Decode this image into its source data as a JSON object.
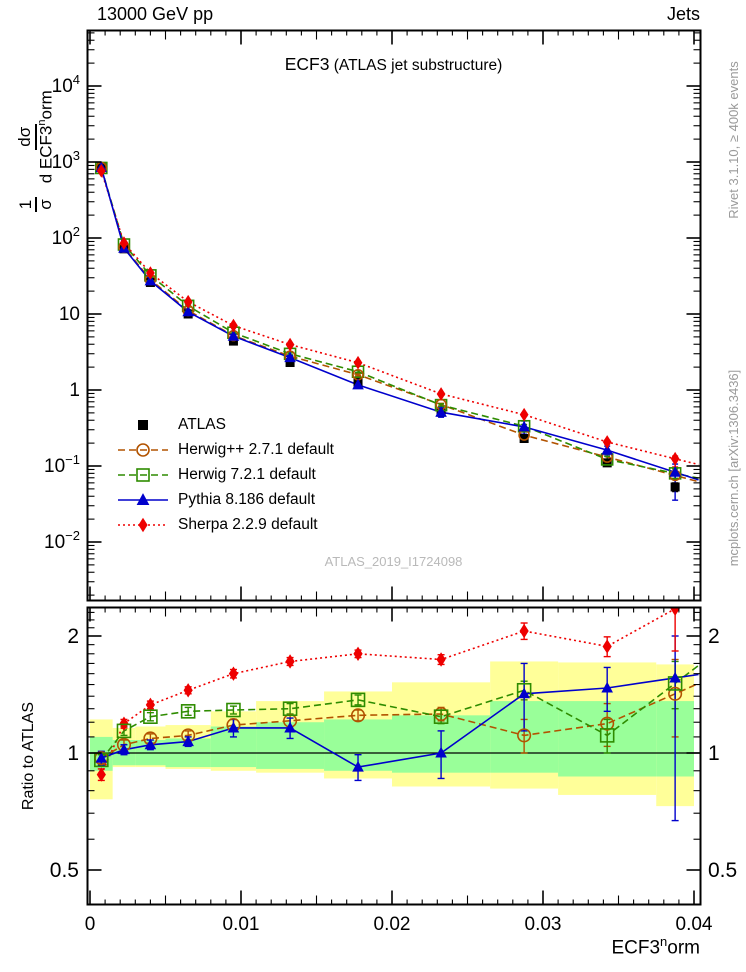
{
  "header": {
    "left": "13000 GeV pp",
    "right": "Jets"
  },
  "main": {
    "title_observable": "ECF3",
    "title_detail": " (ATLAS jet substructure)",
    "watermark": "ATLAS_2019_I1724098"
  },
  "side": {
    "rivet": "Rivet 3.1.10, ≥ 400k events",
    "mcplots": "mcplots.cern.ch [arXiv:1306.3436]"
  },
  "axis_titles": {
    "main_y": {
      "one": "1",
      "sigma": "σ",
      "dsigma": "dσ",
      "den_base": "d ECF3",
      "den_sup": "n",
      "den_rest": "orm"
    },
    "ratio_y": "Ratio to ATLAS",
    "x_base": "ECF3",
    "x_sup": "n",
    "x_rest": "orm"
  },
  "chart_data": {
    "type": "line",
    "title": "ECF3 (ATLAS jet substructure)",
    "xlabel": "ECF3^norm",
    "ylabel": "1/σ dσ/d ECF3^norm",
    "ylabel_ratio": "Ratio to ATLAS",
    "x_scale": "linear",
    "y_scale": "log",
    "ratio_scale": "log",
    "x_range": [
      0,
      0.0403
    ],
    "y_range_main": [
      0.0017,
      53000
    ],
    "y_range_ratio": [
      0.41,
      2.37
    ],
    "bin_edges": [
      0,
      0.0015,
      0.003,
      0.005,
      0.008,
      0.011,
      0.0155,
      0.02,
      0.0265,
      0.031,
      0.0375,
      0.04
    ],
    "x": [
      0.00075,
      0.00225,
      0.004,
      0.0065,
      0.0095,
      0.01325,
      0.01775,
      0.02325,
      0.02875,
      0.03425,
      0.03875
    ],
    "series": [
      {
        "id": "atlas",
        "name": "ATLAS",
        "color": "#000000",
        "marker": "square-filled",
        "line": "none",
        "values": [
          870,
          72,
          26,
          10,
          4.4,
          2.3,
          1.27,
          0.51,
          0.23,
          0.11,
          0.053
        ],
        "err_frac": [
          0.03,
          0.02,
          0.02,
          0.02,
          0.025,
          0.03,
          0.035,
          0.04,
          0.06,
          0.08,
          0.13
        ]
      },
      {
        "id": "herwigpp",
        "name": "Herwig++ 2.7.1 default",
        "color": "#b25300",
        "marker": "circle-open",
        "line": "dashed",
        "ratio": [
          0.97,
          1.05,
          1.09,
          1.11,
          1.18,
          1.21,
          1.25,
          1.26,
          1.11,
          1.19,
          1.42
        ],
        "ratio_lo": [
          0.94,
          1.02,
          1.06,
          1.08,
          1.14,
          1.17,
          1.21,
          1.21,
          1.0,
          1.04,
          1.1
        ],
        "ratio_hi": [
          1.0,
          1.08,
          1.12,
          1.14,
          1.22,
          1.25,
          1.29,
          1.31,
          1.22,
          1.34,
          1.74
        ]
      },
      {
        "id": "herwig7",
        "name": "Herwig 7.2.1 default",
        "color": "#2e8c00",
        "marker": "square-open",
        "line": "dashed",
        "ratio": [
          0.96,
          1.14,
          1.24,
          1.28,
          1.29,
          1.3,
          1.37,
          1.24,
          1.45,
          1.11,
          1.51
        ],
        "ratio_lo": [
          0.93,
          1.11,
          1.21,
          1.25,
          1.26,
          1.26,
          1.33,
          1.19,
          1.37,
          1.0,
          1.3
        ],
        "ratio_hi": [
          0.99,
          1.17,
          1.27,
          1.31,
          1.32,
          1.34,
          1.41,
          1.29,
          1.53,
          1.22,
          1.72
        ]
      },
      {
        "id": "pythia",
        "name": "Pythia 8.186 default",
        "color": "#0000cc",
        "marker": "triangle-filled",
        "line": "solid",
        "ratio": [
          0.97,
          1.02,
          1.05,
          1.07,
          1.16,
          1.16,
          0.92,
          1.0,
          1.42,
          1.47,
          1.56
        ],
        "ratio_lo": [
          0.93,
          0.99,
          1.02,
          1.04,
          1.1,
          1.09,
          0.85,
          0.86,
          1.14,
          1.28,
          0.67
        ],
        "ratio_hi": [
          1.01,
          1.05,
          1.08,
          1.1,
          1.22,
          1.23,
          0.99,
          1.14,
          1.7,
          1.66,
          2.0
        ]
      },
      {
        "id": "sherpa",
        "name": "Sherpa 2.2.9 default",
        "color": "#ee0000",
        "marker": "diamond-filled",
        "line": "dotted",
        "ratio": [
          0.88,
          1.19,
          1.33,
          1.45,
          1.6,
          1.72,
          1.8,
          1.74,
          2.06,
          1.88,
          2.35
        ],
        "ratio_lo": [
          0.85,
          1.16,
          1.3,
          1.42,
          1.56,
          1.68,
          1.76,
          1.69,
          1.96,
          1.77,
          1.83
        ],
        "ratio_hi": [
          0.91,
          1.22,
          1.36,
          1.48,
          1.64,
          1.76,
          1.84,
          1.79,
          2.16,
          1.99,
          2.55
        ]
      }
    ],
    "ratio_reference": "atlas",
    "ratio_line_value": 1,
    "bands": {
      "outer_color": "#ffff99",
      "inner_color": "#99ff99",
      "outer_lo": [
        0.76,
        0.92,
        0.92,
        0.91,
        0.9,
        0.89,
        0.86,
        0.82,
        0.81,
        0.78,
        0.73
      ],
      "outer_hi": [
        1.22,
        1.16,
        1.17,
        1.18,
        1.28,
        1.36,
        1.44,
        1.52,
        1.72,
        1.71,
        1.69
      ],
      "inner_lo": [
        0.9,
        0.93,
        0.93,
        0.92,
        0.92,
        0.91,
        0.9,
        0.89,
        0.89,
        0.87,
        0.87
      ],
      "inner_hi": [
        1.1,
        1.08,
        1.08,
        1.09,
        1.17,
        1.2,
        1.22,
        1.25,
        1.36,
        1.36,
        1.36
      ]
    },
    "x_ticks": [
      {
        "v": 0,
        "label": "0"
      },
      {
        "v": 0.01,
        "label": "0.01"
      },
      {
        "v": 0.02,
        "label": "0.02"
      },
      {
        "v": 0.03,
        "label": "0.03"
      },
      {
        "v": 0.04,
        "label": "0.04"
      }
    ],
    "y_ticks_main": [
      {
        "v": 10000,
        "base": "10",
        "sup": "4"
      },
      {
        "v": 1000,
        "base": "10",
        "sup": "3"
      },
      {
        "v": 100,
        "base": "10",
        "sup": "2"
      },
      {
        "v": 10,
        "base": "10",
        "sup": ""
      },
      {
        "v": 1,
        "base": "1",
        "sup": ""
      },
      {
        "v": 0.1,
        "base": "10",
        "sup": "−1"
      },
      {
        "v": 0.01,
        "base": "10",
        "sup": "−2"
      }
    ],
    "y_ticks_ratio": [
      {
        "v": 2,
        "label": "2"
      },
      {
        "v": 1,
        "label": "1"
      },
      {
        "v": 0.5,
        "label": "0.5"
      }
    ],
    "legend_position": "center-left",
    "grid": false
  }
}
